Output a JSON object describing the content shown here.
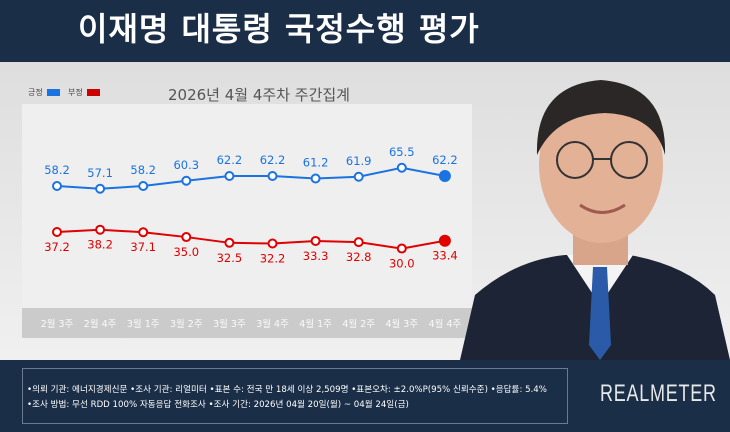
{
  "header": {
    "title": "이재명 대통령 국정수행 평가"
  },
  "legend": {
    "positive": "긍정",
    "negative": "부정"
  },
  "colors": {
    "positive": "#1a73e0",
    "negative": "#e00000",
    "header": "#1b2e47"
  },
  "chart_data": {
    "type": "line",
    "title": "2026년 4월 4주차 주간집계",
    "categories": [
      "2월 3주",
      "2월 4주",
      "3월 1주",
      "3월 2주",
      "3월 3주",
      "3월 4주",
      "4월 1주",
      "4월 2주",
      "4월 3주",
      "4월 4주"
    ],
    "series": [
      {
        "name": "긍정",
        "values": [
          58.2,
          57.1,
          58.2,
          60.3,
          62.2,
          62.2,
          61.2,
          61.9,
          65.5,
          62.2
        ]
      },
      {
        "name": "부정",
        "values": [
          37.2,
          38.2,
          37.1,
          35.0,
          32.5,
          32.2,
          33.3,
          32.8,
          30.0,
          33.4
        ]
      }
    ],
    "grid": false,
    "legend_placement": "top-left"
  },
  "footer": {
    "line1": "•의뢰 기관: 에너지경제신문 •조사 기관: 리얼미터 •표본 수: 전국 만 18세 이상 2,509명 •표본오차: ±2.0%P(95% 신뢰수준) •응답률: 5.4%",
    "line2": "•조사 방법: 무선 RDD 100% 자동응답 전화조사 •조사 기간: 2026년 04월 20일(월) ~ 04월 24일(금)",
    "logo": "REALMETER"
  }
}
